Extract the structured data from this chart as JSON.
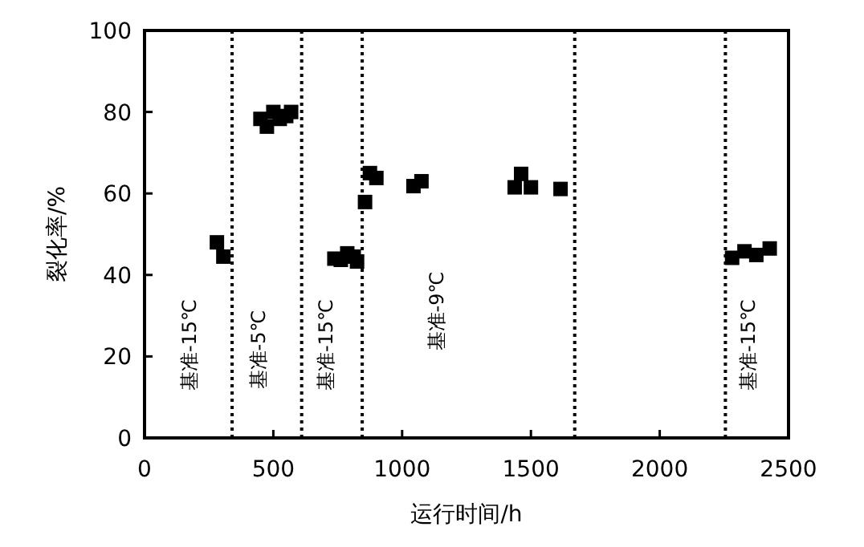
{
  "chart_data": {
    "type": "scatter",
    "xlabel": "运行时间/h",
    "ylabel": "裂化率/%",
    "x": [
      281,
      306,
      450,
      475,
      500,
      525,
      550,
      569,
      737,
      762,
      787,
      812,
      825,
      856,
      875,
      900,
      1044,
      1075,
      1437,
      1462,
      1500,
      1615,
      2281,
      2329,
      2375,
      2427
    ],
    "values": [
      48,
      44.5,
      78.3,
      76.4,
      80,
      78.3,
      79,
      80,
      44,
      43.7,
      45.3,
      44.5,
      43.3,
      57.9,
      65,
      63.8,
      61.8,
      63,
      61.5,
      64.8,
      61.5,
      61.1,
      44.2,
      45.8,
      44.9,
      46.5
    ],
    "color": "#000000",
    "marker": "square",
    "xlim": [
      0,
      2500
    ],
    "ylim": [
      0,
      100
    ],
    "xticks": [
      0,
      500,
      1000,
      1500,
      2000,
      2500
    ],
    "yticks": [
      0,
      20,
      40,
      60,
      80,
      100
    ],
    "ref_lines": [
      {
        "axis": "x",
        "value": 340,
        "color": "#000000",
        "line_style": "dotted"
      },
      {
        "axis": "x",
        "value": 610,
        "color": "#000000",
        "line_style": "dotted"
      },
      {
        "axis": "x",
        "value": 845,
        "color": "#000000",
        "line_style": "dotted"
      },
      {
        "axis": "x",
        "value": 1670,
        "color": "#000000",
        "line_style": "dotted"
      },
      {
        "axis": "x",
        "value": 2255,
        "color": "#000000",
        "line_style": "dotted"
      }
    ],
    "annotations": [
      "基准-15℃",
      "基准-5℃",
      "基准-15℃",
      "基准-9℃",
      "基准-15℃"
    ]
  }
}
